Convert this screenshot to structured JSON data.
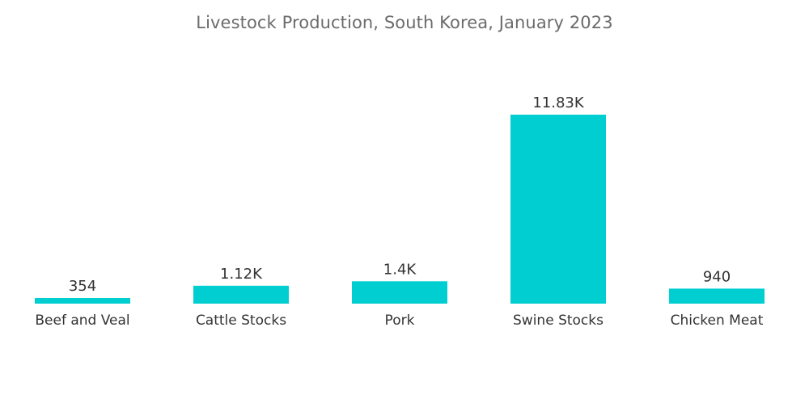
{
  "chart_data": {
    "type": "bar",
    "title": "Livestock Production, South Korea, January 2023",
    "categories": [
      "Beef and Veal",
      "Cattle Stocks",
      "Pork",
      "Swine Stocks",
      "Chicken Meat"
    ],
    "values": [
      354,
      1120,
      1400,
      11830,
      940
    ],
    "data_labels": [
      "354",
      "1.12K",
      "1.4K",
      "11.83K",
      "940"
    ],
    "xlabel": "",
    "ylabel": "",
    "ylim": [
      0,
      11830
    ],
    "grid": false,
    "legend": "none",
    "bar_color": "#00CED1"
  }
}
